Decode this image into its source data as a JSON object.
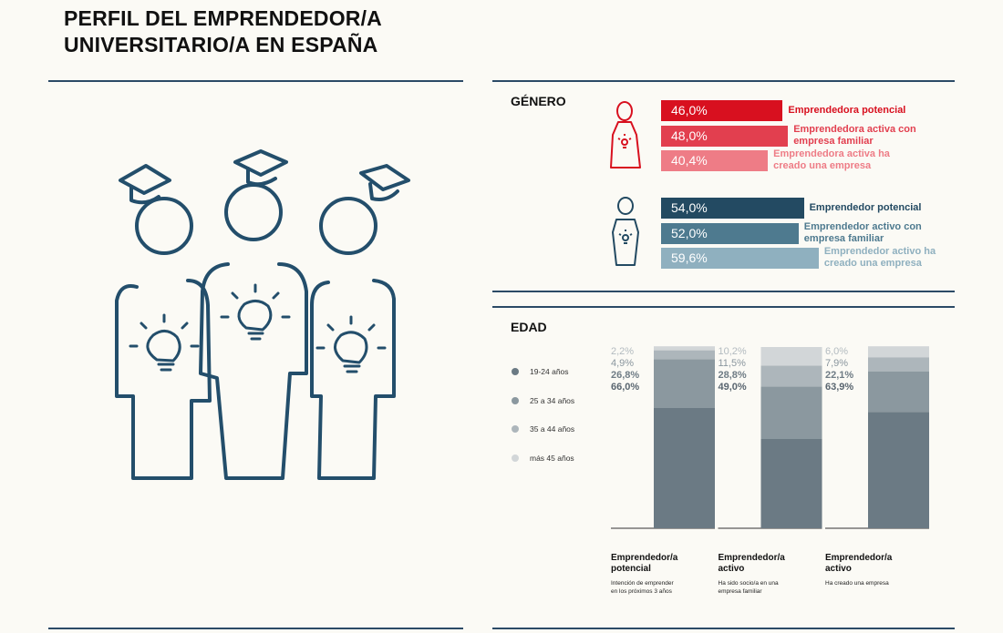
{
  "title_line1": "PERFIL DEL EMPRENDEDOR/A",
  "title_line2": "UNIVERSITARIO/A EN ESPAÑA",
  "icons": {
    "people": "graduate-entrepreneurs-icon",
    "female": "female-entrepreneur-icon",
    "male": "male-entrepreneur-icon"
  },
  "colors": {
    "rule": "#2b4a66",
    "people_icon": "#234e6b"
  },
  "genero": {
    "label": "GÉNERO",
    "female": [
      {
        "value": 46.0,
        "value_label": "46,0%",
        "text_line1": "Emprendedora potencial",
        "text_line2": "",
        "bar_color": "#d8101f",
        "text_color": "#d8101f"
      },
      {
        "value": 48.0,
        "value_label": "48,0%",
        "text_line1": "Emprendedora activa con",
        "text_line2": "empresa familiar",
        "bar_color": "#e23f4f",
        "text_color": "#e23f4f"
      },
      {
        "value": 40.4,
        "value_label": "40,4%",
        "text_line1": "Emprendedora activa ha",
        "text_line2": "creado una empresa",
        "bar_color": "#ee7c86",
        "text_color": "#ee7c86"
      }
    ],
    "male": [
      {
        "value": 54.0,
        "value_label": "54,0%",
        "text_line1": "Emprendedor potencial",
        "text_line2": "",
        "bar_color": "#234a62",
        "text_color": "#234a62"
      },
      {
        "value": 52.0,
        "value_label": "52,0%",
        "text_line1": "Emprendedor activo con",
        "text_line2": "empresa familiar",
        "bar_color": "#4e7a8f",
        "text_color": "#4e7a8f"
      },
      {
        "value": 59.6,
        "value_label": "59,6%",
        "text_line1": "Emprendedor activo ha",
        "text_line2": "creado una empresa",
        "bar_color": "#8fb0bf",
        "text_color": "#8fb0bf"
      }
    ]
  },
  "edad": {
    "label": "EDAD",
    "legend": [
      {
        "label": "19-24 años",
        "color": "#6b7a84"
      },
      {
        "label": "25 a 34 años",
        "color": "#8b989f"
      },
      {
        "label": "35 a 44 años",
        "color": "#adb6bb"
      },
      {
        "label": "más 45 años",
        "color": "#d2d6d8"
      }
    ],
    "categories": [
      {
        "title_line1": "Emprendedor/a",
        "title_line2": "potencial",
        "sub_line1": "Intención de emprender",
        "sub_line2": "en los próximos 3 años"
      },
      {
        "title_line1": "Emprendedor/a",
        "title_line2": "activo",
        "sub_line1": "Ha sido socio/a en una",
        "sub_line2": "empresa familiar"
      },
      {
        "title_line1": "Emprendedor/a",
        "title_line2": "activo",
        "sub_line1": "Ha creado una empresa",
        "sub_line2": ""
      }
    ]
  },
  "chart_data": {
    "type": "bar",
    "stacked": true,
    "categories": [
      "Emprendedor/a potencial",
      "Emprendedor/a activo",
      "Emprendedor/a activo"
    ],
    "series": [
      {
        "name": "19-24 años",
        "values": [
          66.0,
          49.0,
          63.9
        ],
        "labels": [
          "66,0%",
          "49,0%",
          "63,9%"
        ],
        "color": "#6b7a84",
        "label_color": "#5a6670"
      },
      {
        "name": "25 a 34 años",
        "values": [
          26.8,
          28.8,
          22.1
        ],
        "labels": [
          "26,8%",
          "28,8%",
          "22,1%"
        ],
        "color": "#8b989f",
        "label_color": "#6f7c85"
      },
      {
        "name": "35 a 44 años",
        "values": [
          4.9,
          11.5,
          7.9
        ],
        "labels": [
          "4,9%",
          "11,5%",
          "7,9%"
        ],
        "color": "#adb6bb",
        "label_color": "#8a969e"
      },
      {
        "name": "más 45 años",
        "values": [
          2.2,
          10.2,
          6.0
        ],
        "labels": [
          "2,2%",
          "10,2%",
          "6,0%"
        ],
        "color": "#d2d6d8",
        "label_color": "#b3bbc0"
      }
    ],
    "ylim": [
      0,
      100
    ],
    "title": "EDAD"
  }
}
